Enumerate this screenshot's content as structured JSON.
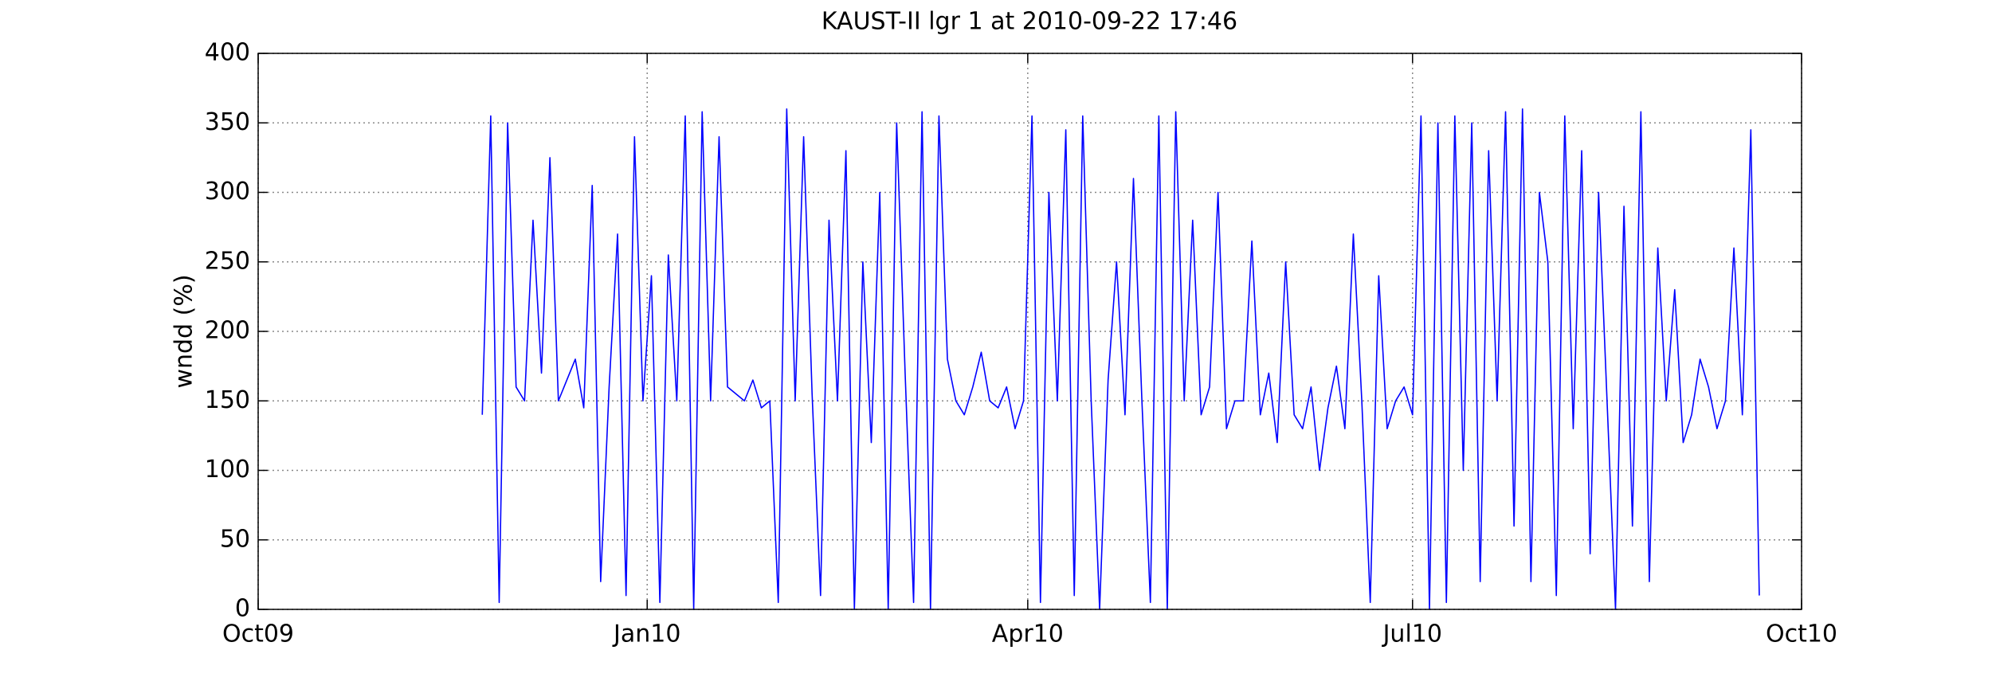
{
  "chart_data": {
    "type": "line",
    "title": "KAUST-II lgr 1 at 2010-09-22 17:46",
    "y_label": "wndd (%)",
    "x": [
      734100,
      734102,
      734104,
      734106,
      734108,
      734110,
      734112,
      734114,
      734116,
      734118,
      734120,
      734122,
      734124,
      734126,
      734128,
      734130,
      734132,
      734134,
      734136,
      734138,
      734140,
      734142,
      734144,
      734146,
      734148,
      734150,
      734152,
      734154,
      734156,
      734158,
      734160,
      734162,
      734164,
      734166,
      734168,
      734170,
      734172,
      734174,
      734176,
      734178,
      734180,
      734182,
      734184,
      734186,
      734188,
      734190,
      734192,
      734194,
      734196,
      734198,
      734200,
      734202,
      734204,
      734206,
      734208,
      734210,
      734212,
      734214,
      734216,
      734218,
      734220,
      734222,
      734224,
      734226,
      734228,
      734230,
      734232,
      734234,
      734236,
      734238,
      734240,
      734242,
      734244,
      734246,
      734248,
      734250,
      734252,
      734254,
      734256,
      734258,
      734260,
      734262,
      734264,
      734266,
      734268,
      734270,
      734272,
      734274,
      734276,
      734278,
      734280,
      734282,
      734284,
      734286,
      734288,
      734290,
      734292,
      734294,
      734296,
      734298,
      734300,
      734302,
      734304,
      734306,
      734308,
      734310,
      734312,
      734314,
      734316,
      734318,
      734320,
      734322,
      734324,
      734326,
      734328,
      734330,
      734332,
      734334,
      734336,
      734338,
      734340,
      734342,
      734344,
      734346,
      734348,
      734350,
      734352,
      734354,
      734356,
      734358,
      734360,
      734362,
      734364,
      734366,
      734368,
      734370,
      734372,
      734374,
      734376,
      734378,
      734380,
      734382,
      734384,
      734386,
      734388,
      734390,
      734392,
      734394,
      734396,
      734398,
      734400,
      734402
    ],
    "series": [
      {
        "color": "#0000ff",
        "values": [
          140,
          355,
          5,
          350,
          160,
          150,
          280,
          170,
          325,
          150,
          165,
          180,
          145,
          305,
          20,
          160,
          270,
          10,
          340,
          150,
          240,
          5,
          255,
          150,
          355,
          0,
          358,
          150,
          340,
          160,
          155,
          150,
          165,
          145,
          150,
          5,
          360,
          150,
          340,
          155,
          10,
          280,
          150,
          330,
          0,
          250,
          120,
          300,
          0,
          350,
          170,
          5,
          358,
          0,
          355,
          180,
          150,
          140,
          160,
          185,
          150,
          145,
          160,
          130,
          150,
          355,
          5,
          300,
          150,
          345,
          10,
          355,
          150,
          0,
          165,
          250,
          140,
          310,
          150,
          5,
          355,
          0,
          358,
          150,
          280,
          140,
          160,
          300,
          130,
          150,
          150,
          265,
          140,
          170,
          120,
          250,
          140,
          130,
          160,
          100,
          145,
          175,
          130,
          270,
          150,
          5,
          240,
          130,
          150,
          160,
          140,
          355,
          0,
          350,
          5,
          355,
          100,
          350,
          20,
          330,
          150,
          358,
          60,
          360,
          20,
          300,
          250,
          10,
          355,
          130,
          330,
          40,
          300,
          150,
          0,
          290,
          60,
          358,
          20,
          260,
          150,
          230,
          120,
          140,
          180,
          160,
          130,
          150,
          260,
          140,
          345,
          10
        ]
      }
    ],
    "xlim": [
      734047,
      734412
    ],
    "xticks": [
      {
        "value": 734047,
        "label": "Oct09"
      },
      {
        "value": 734139,
        "label": "Jan10"
      },
      {
        "value": 734229,
        "label": "Apr10"
      },
      {
        "value": 734320,
        "label": "Jul10"
      },
      {
        "value": 734412,
        "label": "Oct10"
      }
    ],
    "ylim": [
      0,
      400
    ],
    "yticks": [
      0,
      50,
      100,
      150,
      200,
      250,
      300,
      350,
      400
    ],
    "grid": true
  }
}
